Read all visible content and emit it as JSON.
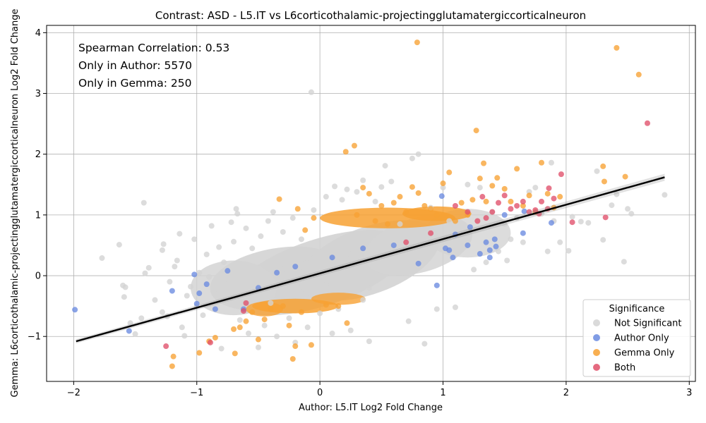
{
  "chart_data": {
    "type": "scatter",
    "title": "Contrast: ASD - L5.IT vs L6corticothalamic-projectingglutamatergiccorticalneuron",
    "xlabel": "Author: L5.IT Log2 Fold Change",
    "ylabel": "Gemma: L6corticothalamic-projectingglutamatergiccorticalneuron Log2 Fold Change",
    "xlim": [
      -2.22,
      3.05
    ],
    "ylim": [
      -1.74,
      4.12
    ],
    "x_ticks": [
      -2,
      -1,
      0,
      1,
      2,
      3
    ],
    "y_ticks": [
      -1,
      0,
      1,
      2,
      3,
      4
    ],
    "grid": true,
    "annotations": [
      "Spearman Correlation: 0.53",
      "Only in Author: 5570",
      "Only in Gemma: 250"
    ],
    "legend": {
      "title": "Significance",
      "placement": "lower-right",
      "entries": [
        {
          "label": "Not Significant",
          "color": "#d3d3d3"
        },
        {
          "label": "Author Only",
          "color": "#6a8be0"
        },
        {
          "label": "Gemma Only",
          "color": "#f7a133"
        },
        {
          "label": "Both",
          "color": "#e0506a"
        }
      ]
    },
    "regression": {
      "x": [
        -1.98,
        2.8
      ],
      "y": [
        -1.08,
        1.62
      ],
      "color": "#000000"
    },
    "series": [
      {
        "name": "Not Significant",
        "color": "#d3d3d3",
        "points": [
          [
            -1.77,
            0.29
          ],
          [
            -1.63,
            0.51
          ],
          [
            -1.6,
            -0.16
          ],
          [
            -1.59,
            -0.35
          ],
          [
            -1.58,
            -0.19
          ],
          [
            -1.54,
            -0.78
          ],
          [
            -1.5,
            -0.96
          ],
          [
            -1.45,
            -0.7
          ],
          [
            -1.43,
            1.2
          ],
          [
            -1.42,
            0.04
          ],
          [
            -1.39,
            0.13
          ],
          [
            -1.34,
            -0.4
          ],
          [
            -1.28,
            -0.6
          ],
          [
            -1.28,
            0.42
          ],
          [
            -1.27,
            0.52
          ],
          [
            -1.24,
            -0.67
          ],
          [
            -1.22,
            -0.1
          ],
          [
            -1.18,
            0.15
          ],
          [
            -1.16,
            0.25
          ],
          [
            -1.14,
            0.69
          ],
          [
            -1.12,
            -0.85
          ],
          [
            -1.1,
            -0.99
          ],
          [
            -1.08,
            -0.33
          ],
          [
            -1.05,
            -0.18
          ],
          [
            -1.02,
            0.6
          ],
          [
            -1.0,
            -0.5
          ],
          [
            -0.98,
            0.05
          ],
          [
            -0.95,
            -0.65
          ],
          [
            -0.92,
            0.35
          ],
          [
            -0.9,
            -0.02
          ],
          [
            -0.88,
            0.82
          ],
          [
            -0.85,
            -0.3
          ],
          [
            -0.82,
            0.47
          ],
          [
            -0.8,
            -1.2
          ],
          [
            -0.78,
            0.22
          ],
          [
            -0.75,
            -0.14
          ],
          [
            -0.72,
            0.88
          ],
          [
            -0.7,
            0.56
          ],
          [
            -0.68,
            1.1
          ],
          [
            -0.67,
            1.02
          ],
          [
            -0.65,
            -0.73
          ],
          [
            -0.6,
            0.78
          ],
          [
            -0.58,
            -0.95
          ],
          [
            -0.55,
            0.45
          ],
          [
            -0.5,
            -1.18
          ],
          [
            -0.48,
            0.65
          ],
          [
            -0.45,
            -0.82
          ],
          [
            -0.42,
            0.9
          ],
          [
            -0.4,
            -0.45
          ],
          [
            -0.38,
            1.05
          ],
          [
            -0.35,
            -1.0
          ],
          [
            -0.3,
            0.72
          ],
          [
            -0.25,
            -0.7
          ],
          [
            -0.22,
            0.95
          ],
          [
            -0.2,
            -1.1
          ],
          [
            -0.15,
            0.6
          ],
          [
            -0.1,
            -0.85
          ],
          [
            -0.07,
            3.02
          ],
          [
            -0.05,
            1.08
          ],
          [
            0.0,
            -0.62
          ],
          [
            0.05,
            1.3
          ],
          [
            0.1,
            -0.95
          ],
          [
            0.12,
            1.47
          ],
          [
            0.15,
            -0.55
          ],
          [
            0.18,
            1.25
          ],
          [
            0.22,
            1.42
          ],
          [
            0.25,
            -0.9
          ],
          [
            0.3,
            1.38
          ],
          [
            0.35,
            1.57
          ],
          [
            0.4,
            -1.08
          ],
          [
            0.45,
            1.22
          ],
          [
            0.5,
            1.46
          ],
          [
            0.53,
            1.81
          ],
          [
            0.58,
            1.55
          ],
          [
            0.65,
            0.85
          ],
          [
            0.72,
            -0.75
          ],
          [
            0.75,
            1.93
          ],
          [
            0.8,
            2.0
          ],
          [
            0.85,
            -1.12
          ],
          [
            0.9,
            1.12
          ],
          [
            0.95,
            -0.55
          ],
          [
            1.0,
            1.45
          ],
          [
            1.05,
            0.9
          ],
          [
            1.1,
            -0.52
          ],
          [
            1.15,
            0.7
          ],
          [
            1.2,
            1.5
          ],
          [
            1.25,
            0.1
          ],
          [
            1.3,
            1.45
          ],
          [
            1.35,
            0.22
          ],
          [
            1.4,
            1.05
          ],
          [
            1.45,
            0.4
          ],
          [
            1.5,
            0.85
          ],
          [
            1.55,
            0.6
          ],
          [
            1.6,
            0.95
          ],
          [
            1.65,
            0.55
          ],
          [
            1.7,
            1.38
          ],
          [
            1.75,
            1.45
          ],
          [
            1.8,
            1.02
          ],
          [
            1.85,
            0.4
          ],
          [
            1.88,
            1.86
          ],
          [
            1.9,
            0.9
          ],
          [
            1.95,
            0.55
          ],
          [
            2.02,
            0.41
          ],
          [
            2.05,
            0.97
          ],
          [
            2.12,
            0.89
          ],
          [
            2.18,
            0.87
          ],
          [
            2.25,
            1.72
          ],
          [
            2.3,
            0.59
          ],
          [
            2.37,
            1.16
          ],
          [
            2.41,
            1.34
          ],
          [
            2.47,
            0.23
          ],
          [
            2.5,
            1.1
          ],
          [
            2.53,
            1.02
          ],
          [
            2.8,
            1.33
          ],
          [
            1.52,
            0.25
          ],
          [
            0.05,
            -0.15
          ],
          [
            -0.12,
            0.2
          ],
          [
            0.25,
            0.35
          ],
          [
            0.4,
            -0.2
          ],
          [
            -0.3,
            0.1
          ],
          [
            0.6,
            0.3
          ],
          [
            0.15,
            0.55
          ],
          [
            -0.45,
            -0.25
          ],
          [
            0.35,
            -0.4
          ],
          [
            0.7,
            0.15
          ]
        ]
      },
      {
        "name": "Author Only",
        "color": "#6a8be0",
        "points": [
          [
            -1.99,
            -0.56
          ],
          [
            -1.55,
            -0.91
          ],
          [
            -1.2,
            -0.25
          ],
          [
            -1.02,
            0.02
          ],
          [
            -1.0,
            -0.46
          ],
          [
            -0.98,
            -0.29
          ],
          [
            -0.92,
            -0.14
          ],
          [
            -0.85,
            -0.55
          ],
          [
            -0.75,
            0.08
          ],
          [
            -0.62,
            -0.55
          ],
          [
            -0.5,
            -0.2
          ],
          [
            -0.35,
            0.05
          ],
          [
            -0.2,
            0.15
          ],
          [
            0.1,
            0.3
          ],
          [
            0.35,
            0.45
          ],
          [
            0.6,
            0.5
          ],
          [
            0.8,
            0.2
          ],
          [
            0.95,
            -0.16
          ],
          [
            0.99,
            1.31
          ],
          [
            1.02,
            0.45
          ],
          [
            1.05,
            0.42
          ],
          [
            1.08,
            0.3
          ],
          [
            1.1,
            0.68
          ],
          [
            1.2,
            0.5
          ],
          [
            1.3,
            0.36
          ],
          [
            1.35,
            0.55
          ],
          [
            1.38,
            0.42
          ],
          [
            1.38,
            0.3
          ],
          [
            1.42,
            0.6
          ],
          [
            1.43,
            0.48
          ],
          [
            1.5,
            1.0
          ],
          [
            1.65,
            0.7
          ],
          [
            1.66,
            1.06
          ],
          [
            1.88,
            0.87
          ],
          [
            1.22,
            0.8
          ]
        ]
      },
      {
        "name": "Gemma Only",
        "color": "#f7a133",
        "points": [
          [
            -1.2,
            -1.49
          ],
          [
            -1.19,
            -1.33
          ],
          [
            -0.98,
            -1.27
          ],
          [
            -0.9,
            -1.08
          ],
          [
            -0.85,
            -1.02
          ],
          [
            -0.7,
            -0.88
          ],
          [
            -0.69,
            -1.28
          ],
          [
            -0.65,
            -0.85
          ],
          [
            -0.6,
            -0.75
          ],
          [
            -0.55,
            -0.6
          ],
          [
            -0.5,
            -1.05
          ],
          [
            -0.45,
            -0.72
          ],
          [
            -0.4,
            -0.55
          ],
          [
            -0.33,
            1.26
          ],
          [
            -0.3,
            -0.5
          ],
          [
            -0.25,
            -0.82
          ],
          [
            -0.22,
            -1.37
          ],
          [
            -0.2,
            -1.16
          ],
          [
            -0.18,
            1.1
          ],
          [
            -0.12,
            0.75
          ],
          [
            -0.07,
            -1.14
          ],
          [
            -0.05,
            0.95
          ],
          [
            0.05,
            -0.48
          ],
          [
            0.15,
            -0.5
          ],
          [
            0.21,
            2.04
          ],
          [
            0.22,
            -0.78
          ],
          [
            0.28,
            2.14
          ],
          [
            0.3,
            1.0
          ],
          [
            0.35,
            1.45
          ],
          [
            0.4,
            1.35
          ],
          [
            0.45,
            0.9
          ],
          [
            0.5,
            1.15
          ],
          [
            0.6,
            1.2
          ],
          [
            0.65,
            1.3
          ],
          [
            0.7,
            1.05
          ],
          [
            0.75,
            1.46
          ],
          [
            0.79,
            3.84
          ],
          [
            0.8,
            1.36
          ],
          [
            0.85,
            1.15
          ],
          [
            0.9,
            1.1
          ],
          [
            0.95,
            1.0
          ],
          [
            1.0,
            1.52
          ],
          [
            1.05,
            1.7
          ],
          [
            1.1,
            0.9
          ],
          [
            1.15,
            1.2
          ],
          [
            1.2,
            1.0
          ],
          [
            1.24,
            1.25
          ],
          [
            1.27,
            2.39
          ],
          [
            1.3,
            1.6
          ],
          [
            1.33,
            1.85
          ],
          [
            1.35,
            1.22
          ],
          [
            1.4,
            1.48
          ],
          [
            1.44,
            1.61
          ],
          [
            1.5,
            1.43
          ],
          [
            1.55,
            1.22
          ],
          [
            1.6,
            1.76
          ],
          [
            1.65,
            1.15
          ],
          [
            1.7,
            1.32
          ],
          [
            1.75,
            1.05
          ],
          [
            1.8,
            1.86
          ],
          [
            1.85,
            1.35
          ],
          [
            1.9,
            1.12
          ],
          [
            1.95,
            1.3
          ],
          [
            2.3,
            1.8
          ],
          [
            2.31,
            1.55
          ],
          [
            2.41,
            3.75
          ],
          [
            2.48,
            1.63
          ],
          [
            2.59,
            3.31
          ],
          [
            0.55,
            0.85
          ],
          [
            -0.15,
            -0.6
          ]
        ]
      },
      {
        "name": "Both",
        "color": "#e0506a",
        "points": [
          [
            -1.25,
            -1.16
          ],
          [
            -0.89,
            -1.1
          ],
          [
            -0.62,
            -0.58
          ],
          [
            -0.6,
            -0.45
          ],
          [
            0.7,
            0.55
          ],
          [
            0.9,
            0.7
          ],
          [
            1.1,
            1.15
          ],
          [
            1.2,
            1.05
          ],
          [
            1.28,
            0.9
          ],
          [
            1.32,
            1.3
          ],
          [
            1.35,
            0.95
          ],
          [
            1.4,
            1.05
          ],
          [
            1.45,
            1.2
          ],
          [
            1.5,
            1.32
          ],
          [
            1.55,
            1.1
          ],
          [
            1.6,
            1.15
          ],
          [
            1.65,
            1.22
          ],
          [
            1.7,
            1.05
          ],
          [
            1.75,
            1.08
          ],
          [
            1.8,
            1.22
          ],
          [
            1.86,
            1.44
          ],
          [
            1.9,
            1.27
          ],
          [
            1.96,
            1.67
          ],
          [
            2.05,
            0.88
          ],
          [
            2.32,
            0.96
          ],
          [
            2.66,
            2.51
          ],
          [
            1.85,
            1.1
          ],
          [
            1.78,
            1.02
          ]
        ]
      }
    ]
  }
}
